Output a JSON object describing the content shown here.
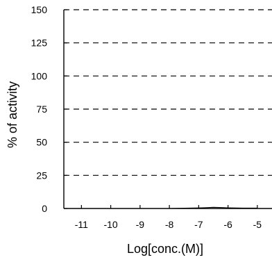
{
  "chart_data": {
    "type": "line",
    "title": "",
    "xlabel": "Log[conc.(M)]",
    "ylabel": "% of activity",
    "x_ticks": [
      "-11",
      "-10",
      "-9",
      "-8",
      "-7",
      "-6",
      "-5"
    ],
    "x_tick_values": [
      -11,
      -10,
      -9,
      -8,
      -7,
      -6,
      -5
    ],
    "y_ticks": [
      "0",
      "25",
      "50",
      "75",
      "100",
      "125",
      "150"
    ],
    "y_tick_values": [
      0,
      25,
      50,
      75,
      100,
      125,
      150
    ],
    "xlim": [
      -11.6,
      -4.5
    ],
    "ylim": [
      0,
      150
    ],
    "grid": "horizontal-dashed",
    "series": [
      {
        "x": [
          -9,
          -8.5,
          -8,
          -7.5,
          -7,
          -6.8,
          -6.5,
          -6.2,
          -6,
          -5.5,
          -5
        ],
        "values": [
          0,
          0,
          0,
          0.2,
          0.4,
          0.6,
          0.9,
          0.7,
          0.5,
          0.3,
          0.3
        ],
        "color": "#000000"
      }
    ],
    "colors": {
      "axis": "#000000",
      "grid": "#000000",
      "line": "#000000"
    }
  }
}
